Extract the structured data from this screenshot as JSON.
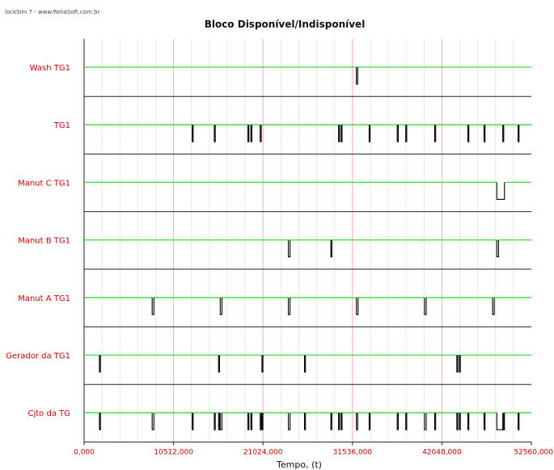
{
  "header": {
    "watermark": "lockSim 7 - www.ReliaSoft.com.br"
  },
  "chart_data": {
    "type": "timeline",
    "title": "Bloco Disponível/Indisponível",
    "xlabel": "Tempo, (t)",
    "ylabel": "",
    "xlim": [
      0,
      52560
    ],
    "x_ticks": [
      0,
      10512,
      21024,
      31536,
      42048,
      52560
    ],
    "x_tick_labels": [
      "0,000",
      "10512,000",
      "21024,000",
      "31536,000",
      "42048,000",
      "52560,000"
    ],
    "grid": true,
    "colors": {
      "up_line": "#33dd33",
      "down_event": "#000000",
      "major_grid": "#ffaaaa",
      "minor_grid": "#d6f5d6",
      "row_label": "#cc0000",
      "tick_label": "#cc0000"
    },
    "rows": [
      {
        "name": "Wash TG1",
        "down_intervals": [
          [
            32000,
            32150
          ]
        ]
      },
      {
        "name": "TG1",
        "down_intervals": [
          [
            12700,
            12760
          ],
          [
            15300,
            15360
          ],
          [
            19250,
            19310
          ],
          [
            19600,
            19660
          ],
          [
            20700,
            20760
          ],
          [
            29900,
            29960
          ],
          [
            30200,
            30260
          ],
          [
            33500,
            33560
          ],
          [
            36800,
            36860
          ],
          [
            37800,
            37860
          ],
          [
            41200,
            41260
          ],
          [
            45100,
            45160
          ],
          [
            47000,
            47060
          ],
          [
            49200,
            49260
          ],
          [
            51000,
            51060
          ]
        ]
      },
      {
        "name": "Manut C TG1",
        "down_intervals": [
          [
            48500,
            49400
          ]
        ]
      },
      {
        "name": "Manut B TG1",
        "down_intervals": [
          [
            24000,
            24200
          ],
          [
            29000,
            29080
          ],
          [
            48500,
            48700
          ]
        ]
      },
      {
        "name": "Manut A TG1",
        "down_intervals": [
          [
            8000,
            8200
          ],
          [
            16000,
            16200
          ],
          [
            24000,
            24200
          ],
          [
            32000,
            32200
          ],
          [
            40000,
            40200
          ],
          [
            48000,
            48200
          ]
        ]
      },
      {
        "name": "Gerador da TG1",
        "down_intervals": [
          [
            1800,
            1860
          ],
          [
            15800,
            15860
          ],
          [
            20900,
            20960
          ],
          [
            25900,
            25960
          ],
          [
            43800,
            43860
          ],
          [
            44100,
            44160
          ]
        ]
      },
      {
        "name": "Cjto da TG",
        "down_intervals": [
          [
            1800,
            1860
          ],
          [
            8000,
            8200
          ],
          [
            12700,
            12760
          ],
          [
            15300,
            15360
          ],
          [
            15800,
            15860
          ],
          [
            16000,
            16200
          ],
          [
            19250,
            19310
          ],
          [
            19600,
            19660
          ],
          [
            20700,
            20760
          ],
          [
            20900,
            20960
          ],
          [
            24000,
            24200
          ],
          [
            25900,
            25960
          ],
          [
            29000,
            29080
          ],
          [
            29900,
            29960
          ],
          [
            30200,
            30260
          ],
          [
            32000,
            32150
          ],
          [
            33500,
            33560
          ],
          [
            36800,
            36860
          ],
          [
            37800,
            37860
          ],
          [
            40000,
            40200
          ],
          [
            41200,
            41260
          ],
          [
            43800,
            43860
          ],
          [
            44100,
            44160
          ],
          [
            45100,
            45160
          ],
          [
            47000,
            47060
          ],
          [
            48500,
            49400
          ],
          [
            49200,
            49260
          ],
          [
            51000,
            51060
          ]
        ]
      }
    ]
  }
}
